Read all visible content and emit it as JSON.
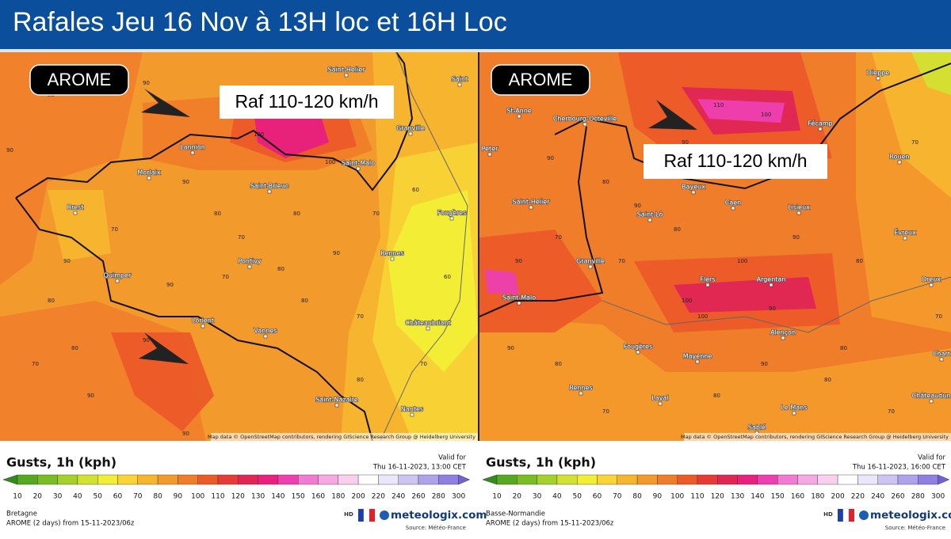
{
  "header": {
    "title": "Rafales Jeu 16 Nov à 13H loc et 16H Loc"
  },
  "legend_scale": {
    "ticks": [
      "10",
      "20",
      "30",
      "40",
      "50",
      "60",
      "70",
      "80",
      "90",
      "100",
      "110",
      "120",
      "130",
      "140",
      "150",
      "160",
      "180",
      "200",
      "220",
      "240",
      "260",
      "280",
      "300"
    ],
    "colors": [
      "#2f8f1a",
      "#55a81f",
      "#7bbd25",
      "#a5d12c",
      "#d2e233",
      "#f2ee36",
      "#f8d436",
      "#f6b52f",
      "#f39a2c",
      "#f07d2a",
      "#ec5a28",
      "#e63a36",
      "#e02655",
      "#e8207e",
      "#ee3fb0",
      "#f27ad0",
      "#f5a8e2",
      "#f8d0ee",
      "#ffffff",
      "#ebe6fa",
      "#cdc4f2",
      "#aea2ea",
      "#8e80e0",
      "#6f62d6"
    ]
  },
  "panels": [
    {
      "model": "AROME",
      "annotation": "Raf 110-120 km/h",
      "attribution": "Map data © OpenStreetMap contributors, rendering GIScience Research Group @ Heidelberg University",
      "cities": [
        "Saint-Helier",
        "Saint",
        "Granville",
        "Lannion",
        "Morlaix",
        "Saint-Malo",
        "Saint-Brieuc",
        "Brest",
        "Fougères",
        "Rennes",
        "Pontivy",
        "Quimper",
        "Lorient",
        "Vannes",
        "Châteaubriant",
        "Saint-Nazaire",
        "Nantes"
      ],
      "contours": [
        "90",
        "80",
        "80",
        "90",
        "100",
        "100",
        "90",
        "80",
        "70",
        "70",
        "80",
        "90",
        "70",
        "80",
        "60",
        "70",
        "70",
        "80",
        "90",
        "90",
        "80",
        "70",
        "90",
        "80",
        "90",
        "90",
        "70",
        "60"
      ],
      "legend": {
        "title": "Gusts, 1h (kph)",
        "valid_label": "Valid for",
        "valid_time": "Thu 16-11-2023, 13:00 CET",
        "region": "Bretagne",
        "run": "AROME (2 days) from  15-11-2023/06z",
        "hd": "HD",
        "brand": "meteologix.com",
        "source": "Source: Météo-France"
      }
    },
    {
      "model": "AROME",
      "annotation": "Raf 110-120 km/h",
      "attribution": "Map data © OpenStreetMap contributors, rendering GIScience Research Group @ Heidelberg University",
      "cities": [
        "St-Anne",
        "Cherbourg-Octeville",
        "Dieppe",
        "Fécamp",
        "Rouen",
        "Bayeux",
        "Caen",
        "Lisieux",
        "Saint-Helier",
        "Saint-Lô",
        "Évreux",
        "Granville",
        "Flers",
        "Argentan",
        "Dreux",
        "Saint-Malo",
        "Alençon",
        "Fougères",
        "Mayenne",
        "Rennes",
        "Laval",
        "Le Mans",
        "Châteaudun",
        "Sablé",
        "Chart",
        "Peter"
      ],
      "contours": [
        "110",
        "100",
        "90",
        "80",
        "70",
        "70",
        "90",
        "80",
        "90",
        "100",
        "100",
        "90",
        "80",
        "70",
        "90",
        "80",
        "100",
        "90",
        "80",
        "70",
        "80",
        "90",
        "70",
        "80",
        "70",
        "90"
      ],
      "legend": {
        "title": "Gusts, 1h (kph)",
        "valid_label": "Valid for",
        "valid_time": "Thu 16-11-2023, 16:00 CET",
        "region": "Basse-Normandie",
        "run": "AROME (2 days) from  15-11-2023/06z",
        "hd": "HD",
        "brand": "meteologix.com",
        "source": "Source: Météo-France"
      }
    }
  ]
}
